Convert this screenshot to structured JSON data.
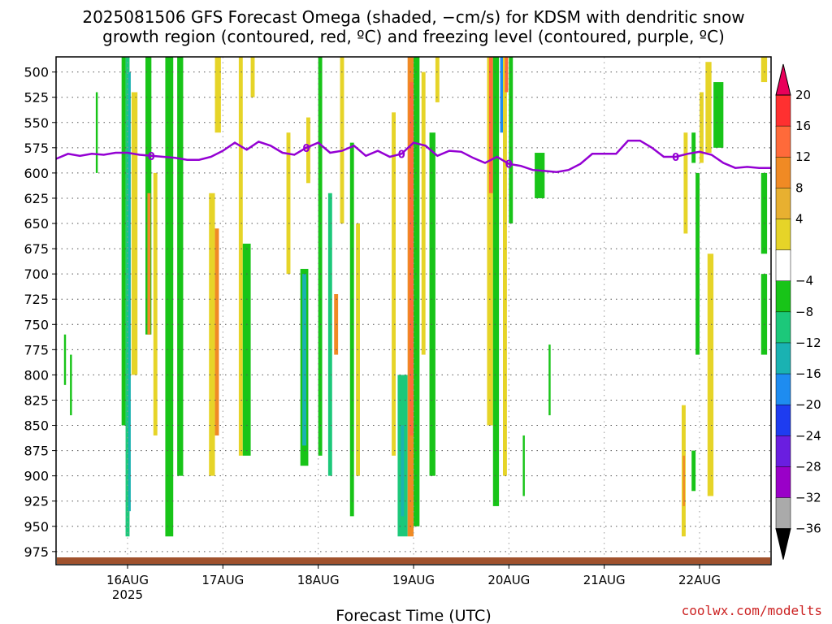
{
  "title_lines": [
    "2025081506 GFS Forecast Omega (shaded, −cm/s) for KDSM with dendritic snow",
    "growth region (contoured, red, ºC) and freezing level (contoured, purple, ºC)"
  ],
  "credit": "coolwx.com/modelts",
  "colors": {
    "ground": "#a0522d",
    "freezing_level": "#9400d3",
    "grid": "#555555",
    "credit": "#cc2222"
  },
  "chart_data": {
    "type": "heatmap",
    "title": "2025081506 GFS Forecast Omega (shaded, −cm/s) for KDSM with dendritic snow growth region (contoured, red, ºC) and freezing level (contoured, purple, ºC)",
    "xlabel": "Forecast Time (UTC)",
    "ylabel": "",
    "x_unit": "hours since 15 Aug 06 UTC",
    "xlim": [
      0,
      180
    ],
    "ylim": [
      988,
      485
    ],
    "y_inverted": true,
    "y_ticks": [
      500,
      525,
      550,
      575,
      600,
      625,
      650,
      675,
      700,
      725,
      750,
      775,
      800,
      825,
      850,
      875,
      900,
      925,
      950,
      975
    ],
    "x_ticks": [
      {
        "hour": 18,
        "label": "16AUG",
        "sublabel": "2025"
      },
      {
        "hour": 42,
        "label": "17AUG",
        "sublabel": ""
      },
      {
        "hour": 66,
        "label": "18AUG",
        "sublabel": ""
      },
      {
        "hour": 90,
        "label": "19AUG",
        "sublabel": ""
      },
      {
        "hour": 114,
        "label": "20AUG",
        "sublabel": ""
      },
      {
        "hour": 138,
        "label": "21AUG",
        "sublabel": ""
      },
      {
        "hour": 162,
        "label": "22AUG",
        "sublabel": ""
      }
    ],
    "grid": true,
    "colorbar": {
      "labels": [
        "20",
        "16",
        "12",
        "8",
        "4",
        "−4",
        "−8",
        "−12",
        "−16",
        "−20",
        "−24",
        "−28",
        "−32",
        "−36"
      ],
      "colors": [
        "#e8005a",
        "#ff3030",
        "#ff6a3a",
        "#f08a24",
        "#e8b030",
        "#e6d428",
        "#ffffff",
        "#18c418",
        "#1cc87a",
        "#1ab2b2",
        "#1e8cf0",
        "#1e3cf0",
        "#6a1ee0",
        "#9a00c8",
        "#aaaaaa",
        "#000000"
      ]
    },
    "freezing_level": {
      "label": "0",
      "hours": [
        0,
        3,
        6,
        9,
        12,
        15,
        18,
        21,
        24,
        27,
        30,
        33,
        36,
        39,
        42,
        45,
        48,
        51,
        54,
        57,
        60,
        63,
        66,
        69,
        72,
        75,
        78,
        81,
        84,
        87,
        90,
        93,
        96,
        99,
        102,
        105,
        108,
        111,
        114,
        117,
        120,
        123,
        126,
        129,
        132,
        135,
        138,
        141,
        144,
        147,
        150,
        153,
        156,
        159,
        162,
        165,
        168,
        171,
        174,
        177,
        180
      ],
      "pressure": [
        586,
        581,
        583,
        581,
        582,
        580,
        580,
        582,
        583,
        584,
        585,
        587,
        587,
        584,
        578,
        570,
        577,
        569,
        573,
        580,
        582,
        575,
        570,
        580,
        578,
        573,
        583,
        578,
        584,
        581,
        570,
        573,
        583,
        578,
        579,
        585,
        590,
        584,
        591,
        593,
        597,
        598,
        599,
        597,
        591,
        581,
        581,
        581,
        568,
        568,
        575,
        584,
        584,
        581,
        579,
        582,
        590,
        595,
        594,
        595,
        595
      ]
    },
    "omega_cells": [
      {
        "h0": 16.5,
        "h1": 17.5,
        "p0": 485,
        "p1": 850,
        "value": -6
      },
      {
        "h0": 17.5,
        "h1": 18.5,
        "p0": 485,
        "p1": 960,
        "value": -10
      },
      {
        "h0": 18.2,
        "h1": 18.8,
        "p0": 500,
        "p1": 935,
        "value": -14
      },
      {
        "h0": 19.0,
        "h1": 20.5,
        "p0": 520,
        "p1": 800,
        "value": 6
      },
      {
        "h0": 22.5,
        "h1": 24.0,
        "p0": 485,
        "p1": 760,
        "value": -6
      },
      {
        "h0": 23.0,
        "h1": 23.8,
        "p0": 620,
        "p1": 760,
        "value": 9
      },
      {
        "h0": 24.5,
        "h1": 25.5,
        "p0": 600,
        "p1": 860,
        "value": 5
      },
      {
        "h0": 27.5,
        "h1": 29.5,
        "p0": 485,
        "p1": 960,
        "value": -6
      },
      {
        "h0": 30.5,
        "h1": 32.0,
        "p0": 485,
        "p1": 900,
        "value": -6
      },
      {
        "h0": 38.5,
        "h1": 40.0,
        "p0": 620,
        "p1": 900,
        "value": 6
      },
      {
        "h0": 40.0,
        "h1": 41.0,
        "p0": 655,
        "p1": 860,
        "value": 10
      },
      {
        "h0": 40.0,
        "h1": 41.5,
        "p0": 485,
        "p1": 560,
        "value": 6
      },
      {
        "h0": 46.0,
        "h1": 47.0,
        "p0": 485,
        "p1": 880,
        "value": 6
      },
      {
        "h0": 47.0,
        "h1": 49.0,
        "p0": 670,
        "p1": 880,
        "value": -6
      },
      {
        "h0": 49.0,
        "h1": 50.0,
        "p0": 485,
        "p1": 525,
        "value": 5
      },
      {
        "h0": 58.0,
        "h1": 59.0,
        "p0": 560,
        "p1": 700,
        "value": 5
      },
      {
        "h0": 61.5,
        "h1": 63.5,
        "p0": 695,
        "p1": 890,
        "value": -6
      },
      {
        "h0": 62.0,
        "h1": 63.0,
        "p0": 700,
        "p1": 870,
        "value": -12
      },
      {
        "h0": 63.0,
        "h1": 64.0,
        "p0": 545,
        "p1": 610,
        "value": 5
      },
      {
        "h0": 66.0,
        "h1": 67.0,
        "p0": 485,
        "p1": 880,
        "value": -6
      },
      {
        "h0": 68.5,
        "h1": 69.5,
        "p0": 620,
        "p1": 900,
        "value": -10
      },
      {
        "h0": 70.0,
        "h1": 71.0,
        "p0": 720,
        "p1": 780,
        "value": 8
      },
      {
        "h0": 71.5,
        "h1": 72.5,
        "p0": 485,
        "p1": 650,
        "value": 5
      },
      {
        "h0": 74.0,
        "h1": 75.0,
        "p0": 570,
        "p1": 940,
        "value": -6
      },
      {
        "h0": 75.5,
        "h1": 76.5,
        "p0": 650,
        "p1": 900,
        "value": 5
      },
      {
        "h0": 84.5,
        "h1": 85.5,
        "p0": 540,
        "p1": 880,
        "value": 6
      },
      {
        "h0": 86.0,
        "h1": 88.5,
        "p0": 800,
        "p1": 960,
        "value": -8
      },
      {
        "h0": 86.8,
        "h1": 87.6,
        "p0": 850,
        "p1": 940,
        "value": -12
      },
      {
        "h0": 88.5,
        "h1": 90.0,
        "p0": 485,
        "p1": 960,
        "value": 8
      },
      {
        "h0": 89.0,
        "h1": 90.0,
        "p0": 510,
        "p1": 860,
        "value": 12
      },
      {
        "h0": 90.0,
        "h1": 91.5,
        "p0": 485,
        "p1": 950,
        "value": -6
      },
      {
        "h0": 92.0,
        "h1": 93.0,
        "p0": 500,
        "p1": 780,
        "value": 6
      },
      {
        "h0": 94.0,
        "h1": 95.5,
        "p0": 560,
        "p1": 900,
        "value": -6
      },
      {
        "h0": 95.5,
        "h1": 96.5,
        "p0": 485,
        "p1": 530,
        "value": 5
      },
      {
        "h0": 108.5,
        "h1": 110.0,
        "p0": 485,
        "p1": 850,
        "value": 6
      },
      {
        "h0": 109.0,
        "h1": 110.0,
        "p0": 485,
        "p1": 620,
        "value": 12
      },
      {
        "h0": 110.0,
        "h1": 111.5,
        "p0": 485,
        "p1": 930,
        "value": -6
      },
      {
        "h0": 111.8,
        "h1": 112.6,
        "p0": 485,
        "p1": 560,
        "value": -18
      },
      {
        "h0": 112.5,
        "h1": 113.5,
        "p0": 485,
        "p1": 900,
        "value": 6
      },
      {
        "h0": 113.0,
        "h1": 113.8,
        "p0": 485,
        "p1": 520,
        "value": 12
      },
      {
        "h0": 114.0,
        "h1": 115.0,
        "p0": 485,
        "p1": 650,
        "value": -6
      },
      {
        "h0": 120.5,
        "h1": 123.0,
        "p0": 580,
        "p1": 625,
        "value": -6
      },
      {
        "h0": 158.0,
        "h1": 159.0,
        "p0": 560,
        "p1": 660,
        "value": 5
      },
      {
        "h0": 160.0,
        "h1": 161.0,
        "p0": 560,
        "p1": 590,
        "value": -6
      },
      {
        "h0": 162.0,
        "h1": 163.0,
        "p0": 520,
        "p1": 590,
        "value": 5
      },
      {
        "h0": 163.5,
        "h1": 165.0,
        "p0": 490,
        "p1": 580,
        "value": 5
      },
      {
        "h0": 165.5,
        "h1": 168.0,
        "p0": 510,
        "p1": 575,
        "value": -6
      },
      {
        "h0": 161.0,
        "h1": 162.0,
        "p0": 600,
        "p1": 780,
        "value": -6
      },
      {
        "h0": 164.0,
        "h1": 165.5,
        "p0": 680,
        "p1": 920,
        "value": 5
      },
      {
        "h0": 157.5,
        "h1": 158.5,
        "p0": 830,
        "p1": 960,
        "value": 6
      },
      {
        "h0": 157.8,
        "h1": 158.3,
        "p0": 880,
        "p1": 930,
        "value": 9
      },
      {
        "h0": 160.0,
        "h1": 161.0,
        "p0": 875,
        "p1": 915,
        "value": -6
      },
      {
        "h0": 177.5,
        "h1": 179.0,
        "p0": 700,
        "p1": 780,
        "value": -6
      },
      {
        "h0": 177.5,
        "h1": 179.0,
        "p0": 600,
        "p1": 680,
        "value": -6
      },
      {
        "h0": 177.5,
        "h1": 179.0,
        "p0": 485,
        "p1": 510,
        "value": 5
      },
      {
        "h0": 2.0,
        "h1": 2.5,
        "p0": 760,
        "p1": 810,
        "value": -6
      },
      {
        "h0": 3.5,
        "h1": 4.0,
        "p0": 780,
        "p1": 840,
        "value": -6
      },
      {
        "h0": 10.0,
        "h1": 10.5,
        "p0": 520,
        "p1": 600,
        "value": -6
      },
      {
        "h0": 124.0,
        "h1": 124.5,
        "p0": 770,
        "p1": 840,
        "value": -6
      },
      {
        "h0": 117.5,
        "h1": 118.0,
        "p0": 860,
        "p1": 920,
        "value": -6
      }
    ]
  }
}
